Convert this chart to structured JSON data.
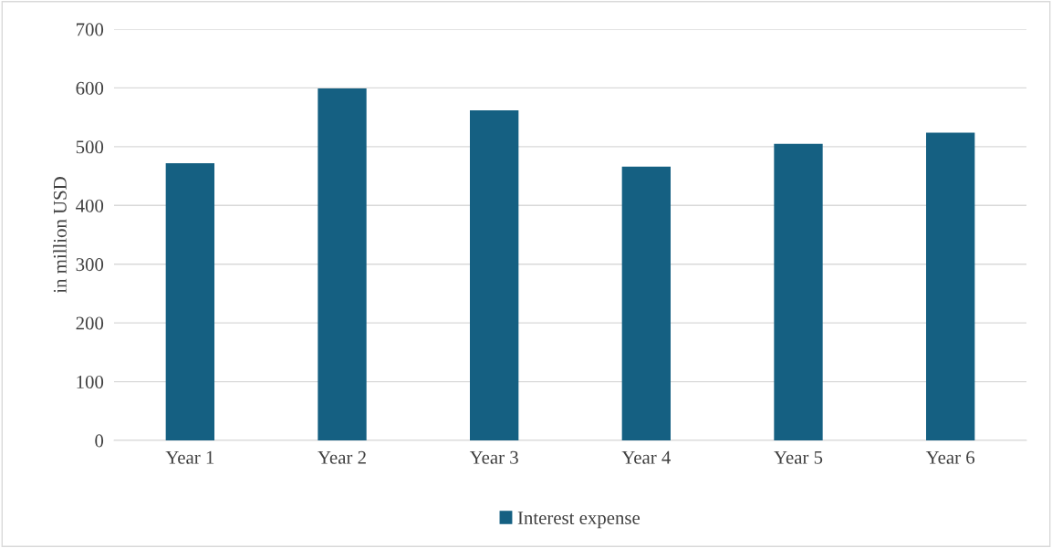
{
  "chart_data": {
    "type": "bar",
    "ylabel": "in million USD",
    "categories": [
      "Year 1",
      "Year 2",
      "Year 3",
      "Year 4",
      "Year 5",
      "Year 6"
    ],
    "series": [
      {
        "name": "Interest expense",
        "color": "#156082",
        "values": [
          472,
          599,
          562,
          466,
          505,
          524
        ]
      }
    ],
    "ylim": [
      0,
      700
    ],
    "yticks": [
      0,
      100,
      200,
      300,
      400,
      500,
      600,
      700
    ],
    "grid": "y",
    "legend": "bottom"
  }
}
